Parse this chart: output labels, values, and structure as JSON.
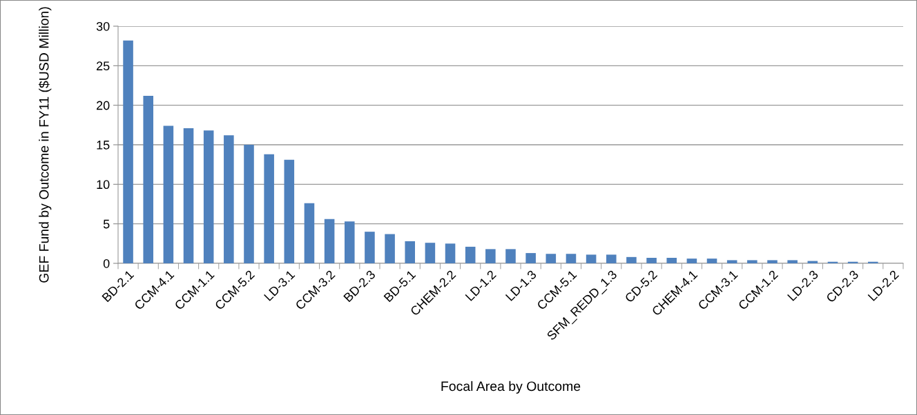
{
  "chart_data": {
    "type": "bar",
    "xlabel": "Focal Area by Outcome",
    "ylabel": "GEF Fund by Outcome in FY11 ($USD Million)",
    "categories": [
      "BD-2.1",
      null,
      "CCM-4.1",
      null,
      "CCM-1.1",
      null,
      "CCM-5.2",
      null,
      "LD-3.1",
      null,
      "CCM-3.2",
      null,
      "BD-2.3",
      null,
      "BD-5.1",
      null,
      "CHEM-2.2",
      null,
      "LD-1.2",
      null,
      "LD-1.3",
      null,
      "CCM-5.1",
      null,
      "SFM_REDD_1.3",
      null,
      "CD-5.2",
      null,
      "CHEM-4.1",
      null,
      "CCM-3.1",
      null,
      "CCM-1.2",
      null,
      "LD-2.3",
      null,
      "CD-2.3",
      null,
      "LD-2.2"
    ],
    "values": [
      28.2,
      21.2,
      17.4,
      17.1,
      16.8,
      16.2,
      15.0,
      13.8,
      13.1,
      7.6,
      5.6,
      5.3,
      4.0,
      3.7,
      2.8,
      2.6,
      2.5,
      2.1,
      1.8,
      1.8,
      1.3,
      1.2,
      1.2,
      1.1,
      1.1,
      0.8,
      0.7,
      0.7,
      0.6,
      0.6,
      0.4,
      0.4,
      0.4,
      0.4,
      0.3,
      0.2,
      0.2,
      0.2,
      0.0
    ],
    "color": "#4f81bd",
    "ylim": [
      0,
      30
    ],
    "yticks": [
      0,
      5,
      10,
      15,
      20,
      25,
      30
    ],
    "grid": "y"
  }
}
